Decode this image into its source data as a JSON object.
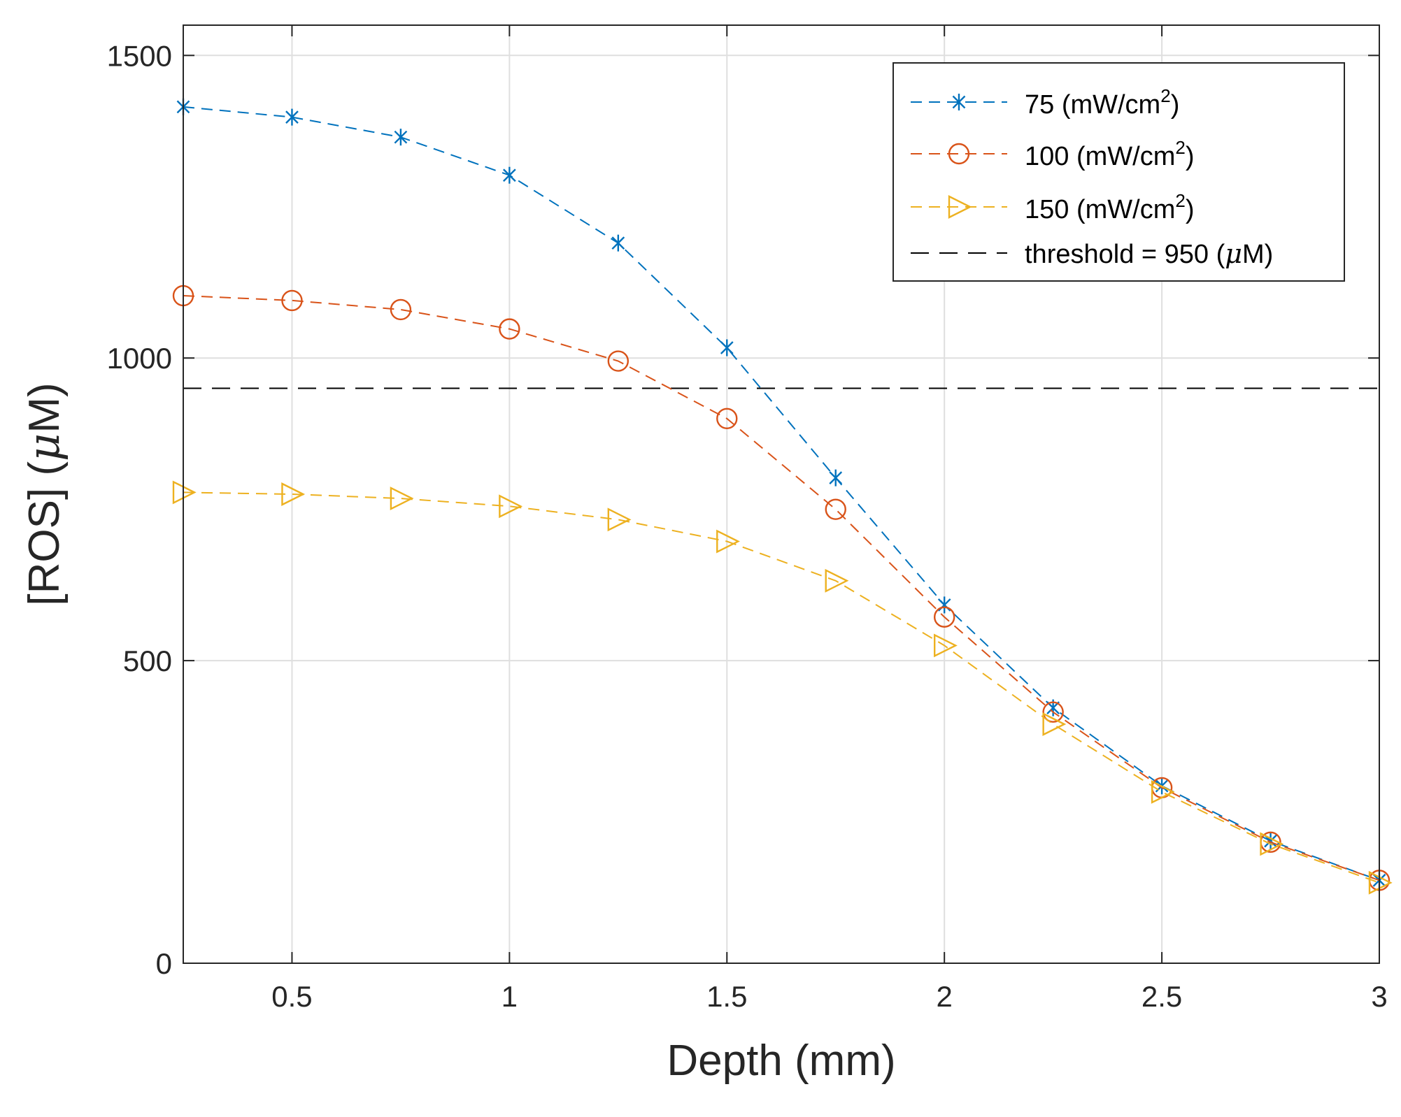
{
  "chart_data": {
    "type": "line",
    "title": "",
    "xlabel": "Depth (mm)",
    "ylabel_prefix": "[ROS] (",
    "ylabel_unit_symbol": "μ",
    "ylabel_unit_rest": "M)",
    "xlim": [
      0.25,
      3
    ],
    "ylim": [
      0,
      1550
    ],
    "xticks": [
      0.5,
      1,
      1.5,
      2,
      2.5,
      3
    ],
    "xtick_labels": [
      "0.5",
      "1",
      "1.5",
      "2",
      "2.5",
      "3"
    ],
    "yticks": [
      0,
      500,
      1000,
      1500
    ],
    "ytick_labels": [
      "0",
      "500",
      "1000",
      "1500"
    ],
    "grid": true,
    "legend_position": "top-right",
    "x": [
      0.25,
      0.5,
      0.75,
      1.0,
      1.25,
      1.5,
      1.75,
      2.0,
      2.25,
      2.5,
      2.75,
      3.0
    ],
    "series": [
      {
        "name": "75 (mW/cm2)",
        "label_main": "75 (mW/cm",
        "label_sup": "2",
        "label_end": ")",
        "color": "#0072BD",
        "marker": "asterisk",
        "line_style": "dashed",
        "values": [
          1415,
          1398,
          1365,
          1302,
          1190,
          1017,
          802,
          592,
          422,
          293,
          202,
          137
        ]
      },
      {
        "name": "100 (mW/cm2)",
        "label_main": "100 (mW/cm",
        "label_sup": "2",
        "label_end": ")",
        "color": "#D95319",
        "marker": "circle",
        "line_style": "dashed",
        "values": [
          1103,
          1095,
          1080,
          1048,
          995,
          900,
          750,
          572,
          415,
          290,
          200,
          137
        ]
      },
      {
        "name": "150 (mW/cm2)",
        "label_main": "150 (mW/cm",
        "label_sup": "2",
        "label_end": ")",
        "color": "#EDB120",
        "marker": "triangle-right",
        "line_style": "dashed",
        "values": [
          778,
          775,
          768,
          755,
          733,
          697,
          632,
          525,
          395,
          283,
          197,
          133
        ]
      }
    ],
    "threshold": {
      "value": 950,
      "label_prefix": "threshold = 950 (",
      "label_unit_symbol": "μ",
      "label_unit_rest": "M)",
      "color": "#000000",
      "line_style": "dashed"
    }
  }
}
